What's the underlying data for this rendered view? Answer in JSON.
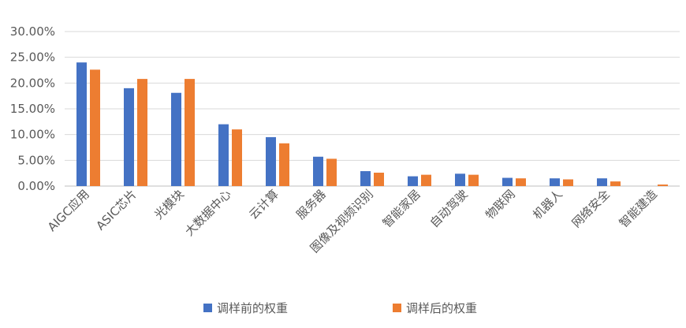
{
  "chart_data": {
    "type": "bar",
    "categories": [
      "AIGC应用",
      "ASIC芯片",
      "光模块",
      "大数据中心",
      "云计算",
      "服务器",
      "图像及视频识别",
      "智能家居",
      "自动驾驶",
      "物联网",
      "机器人",
      "网络安全",
      "智能建造"
    ],
    "series": [
      {
        "name": "调样前的权重",
        "color": "#4472C4",
        "values": [
          24.0,
          19.0,
          18.1,
          12.0,
          9.5,
          5.7,
          2.9,
          1.9,
          2.4,
          1.6,
          1.5,
          1.5,
          0.0
        ]
      },
      {
        "name": "调样后的权重",
        "color": "#ED7D31",
        "values": [
          22.6,
          20.8,
          20.8,
          11.0,
          8.3,
          5.3,
          2.6,
          2.2,
          2.2,
          1.5,
          1.3,
          0.9,
          0.3
        ]
      }
    ],
    "ylim": [
      0,
      30
    ],
    "yticks": [
      "0.00%",
      "5.00%",
      "10.00%",
      "15.00%",
      "20.00%",
      "25.00%",
      "30.00%"
    ],
    "grid": true,
    "legend_position": "bottom"
  }
}
